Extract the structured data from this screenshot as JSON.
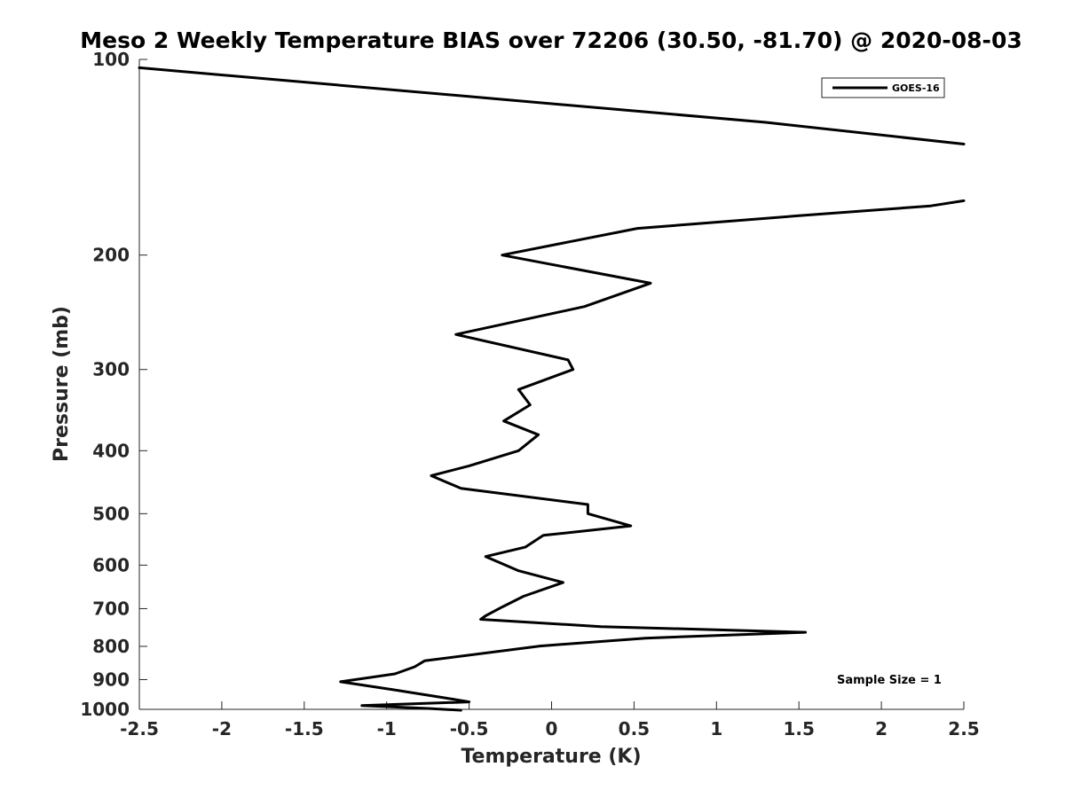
{
  "chart_data": {
    "type": "line",
    "title": "Meso 2 Weekly Temperature BIAS over 72206 (30.50, -81.70) @ 2020-08-03",
    "xlabel": "Temperature (K)",
    "ylabel": "Pressure (mb)",
    "xlim": [
      -2.5,
      2.5
    ],
    "ylim": [
      100,
      1000
    ],
    "y_scale": "log",
    "y_reversed": true,
    "x_ticks": [
      -2.5,
      -2,
      -1.5,
      -1,
      -0.5,
      0,
      0.5,
      1,
      1.5,
      2,
      2.5
    ],
    "x_tick_labels": [
      "-2.5",
      "-2",
      "-1.5",
      "-1",
      "-0.5",
      "0",
      "0.5",
      "1",
      "1.5",
      "2",
      "2.5"
    ],
    "y_ticks": [
      100,
      200,
      300,
      400,
      500,
      600,
      700,
      800,
      900,
      1000
    ],
    "y_tick_labels": [
      "100",
      "200",
      "300",
      "400",
      "500",
      "600",
      "700",
      "800",
      "900",
      "1000"
    ],
    "grid": false,
    "legend_position": "top-right",
    "series": [
      {
        "name": "GOES-16",
        "color": "#000000",
        "segments": [
          {
            "x": [
              -2.5,
              1.3,
              2.5
            ],
            "y": [
              103,
              125,
              135
            ]
          },
          {
            "x": [
              2.5,
              2.3,
              1.5,
              0.52,
              -0.3,
              0.6,
              0.2,
              -0.58,
              0.1,
              0.13,
              -0.2,
              -0.13,
              -0.29,
              -0.08,
              -0.2,
              -0.5,
              -0.73,
              -0.55,
              0.22,
              0.22,
              0.48,
              -0.05,
              -0.16,
              -0.4,
              -0.2,
              0.07,
              -0.17,
              -0.3,
              -0.4,
              -0.43,
              0.3,
              1.54,
              0.57,
              -0.07,
              -0.77,
              -0.83,
              -0.95,
              -1.28,
              -0.96,
              -0.65,
              -0.5,
              -1.15,
              -0.75,
              -0.55
            ],
            "y": [
              165,
              168,
              174,
              182,
              200,
              221,
              240,
              265,
              290,
              300,
              322,
              340,
              360,
              378,
              400,
              422,
              437,
              457,
              484,
              500,
              522,
              540,
              563,
              582,
              612,
              638,
              670,
              696,
              718,
              727,
              746,
              761,
              777,
              799,
              842,
              860,
              882,
              907,
              933,
              960,
              974,
              987,
              997,
              1003
            ]
          }
        ]
      }
    ],
    "legend": [
      "GOES-16"
    ],
    "annotation": "Sample Size = 1"
  }
}
